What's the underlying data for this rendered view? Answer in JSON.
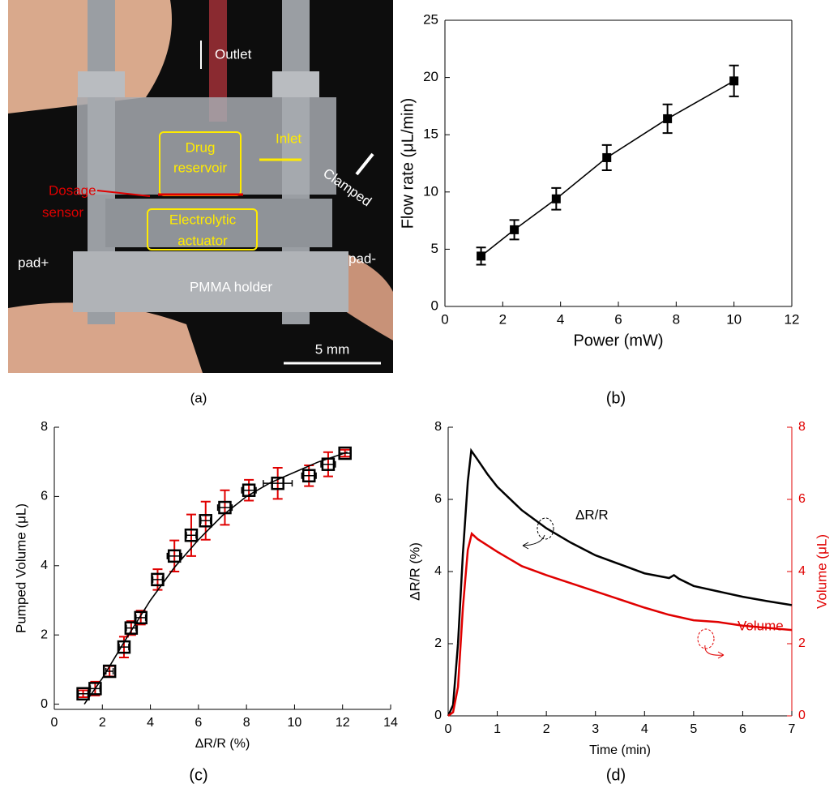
{
  "photo": {
    "caption": "(a)",
    "labels": {
      "outlet": "Outlet",
      "inlet": "Inlet",
      "drug": "Drug",
      "reservoir": "reservoir",
      "dosage": "Dosage",
      "sensor": "sensor",
      "electrolytic": "Electrolytic",
      "actuator": "actuator",
      "clamped": "Clamped",
      "pad_plus": "pad+",
      "pad_minus": "pad-",
      "holder": "PMMA holder",
      "scale": "5 mm"
    }
  },
  "chart_data": [
    {
      "type": "scatter",
      "caption": "(b)",
      "xlabel": "Power (mW)",
      "ylabel": "Flow rate (μL/min)",
      "box": true,
      "xlim": [
        0,
        12
      ],
      "ylim": [
        0,
        25
      ],
      "xticks": [
        0,
        2,
        4,
        6,
        8,
        10,
        12
      ],
      "yticks": [
        0,
        5,
        10,
        15,
        20,
        25
      ],
      "series": [
        {
          "color": "#000000",
          "marker": "filled-square",
          "line": true,
          "x": [
            1.25,
            2.4,
            3.85,
            5.6,
            7.7,
            10
          ],
          "values": [
            4.4,
            6.7,
            9.4,
            13.0,
            16.4,
            19.7
          ],
          "errors": [
            0.75,
            0.85,
            0.95,
            1.1,
            1.25,
            1.35
          ]
        }
      ]
    },
    {
      "type": "scatter",
      "caption": "(c)",
      "xlabel": "ΔR/R (%)",
      "ylabel": "Pumped Volume (μL)",
      "box": false,
      "xlim": [
        0,
        14
      ],
      "ylim": [
        -0.15,
        8
      ],
      "xticks": [
        0,
        2,
        4,
        6,
        8,
        10,
        12,
        14
      ],
      "yticks": [
        0,
        2,
        4,
        6,
        8
      ],
      "series": [
        {
          "color": "#000000",
          "error_color": "#e00000",
          "marker": "open-square",
          "line": false,
          "x": [
            1.2,
            1.7,
            2.3,
            2.9,
            3.2,
            3.6,
            4.3,
            5.0,
            5.7,
            6.3,
            7.1,
            8.1,
            9.3,
            10.6,
            11.4,
            12.1
          ],
          "values": [
            0.3,
            0.45,
            0.95,
            1.65,
            2.2,
            2.5,
            3.6,
            4.28,
            4.88,
            5.3,
            5.68,
            6.18,
            6.38,
            6.6,
            6.93,
            7.25
          ],
          "errors": [
            0.1,
            0.2,
            0.15,
            0.3,
            0.2,
            0.2,
            0.3,
            0.45,
            0.6,
            0.55,
            0.5,
            0.3,
            0.45,
            0.3,
            0.35,
            0.1
          ],
          "xerrors": [
            0.2,
            0.2,
            0.15,
            0.2,
            0.2,
            0.2,
            0.2,
            0.3,
            0.2,
            0.2,
            0.3,
            0.3,
            0.6,
            0.3,
            0.3,
            0.25
          ]
        },
        {
          "color": "#000000",
          "line": true,
          "x": [
            1.25,
            2,
            3,
            4,
            5,
            6,
            7,
            8,
            9,
            10,
            11,
            12.2
          ],
          "values": [
            0,
            0.75,
            1.9,
            3.0,
            3.95,
            4.75,
            5.45,
            6.0,
            6.4,
            6.7,
            7.0,
            7.28
          ]
        }
      ]
    },
    {
      "type": "line",
      "caption": "(d)",
      "xlabel": "Time (min)",
      "ylabel": "ΔR/R (%)",
      "y2label": "Volume (μL)",
      "box": false,
      "xlim": [
        0,
        7
      ],
      "ylim": [
        0,
        8
      ],
      "y2lim": [
        0,
        8
      ],
      "xticks": [
        0,
        1,
        2,
        3,
        4,
        5,
        6,
        7
      ],
      "yticks": [
        0,
        2,
        4,
        6,
        8
      ],
      "y2ticks": [
        0,
        2,
        4,
        6,
        8
      ],
      "series": [
        {
          "name": "ΔR/R",
          "color": "#000000",
          "x": [
            0,
            0.1,
            0.2,
            0.3,
            0.4,
            0.47,
            0.6,
            0.8,
            1,
            1.5,
            2,
            2.5,
            3,
            3.5,
            4,
            4.5,
            4.6,
            4.7,
            5,
            5.5,
            6,
            6.5,
            7
          ],
          "values": [
            0,
            0.3,
            2,
            4.5,
            6.5,
            7.35,
            7.1,
            6.7,
            6.35,
            5.7,
            5.2,
            4.8,
            4.45,
            4.2,
            3.95,
            3.82,
            3.9,
            3.8,
            3.6,
            3.45,
            3.3,
            3.18,
            3.07
          ]
        },
        {
          "name": "Volume",
          "color": "#e00000",
          "axis": "y2",
          "x": [
            0,
            0.1,
            0.2,
            0.3,
            0.4,
            0.48,
            0.6,
            1,
            1.5,
            2,
            3,
            4,
            4.5,
            5,
            5.5,
            6,
            7
          ],
          "values": [
            0,
            0.1,
            0.8,
            3,
            4.6,
            5.05,
            4.9,
            4.55,
            4.15,
            3.9,
            3.45,
            3.0,
            2.8,
            2.65,
            2.6,
            2.5,
            2.38
          ]
        }
      ]
    }
  ]
}
